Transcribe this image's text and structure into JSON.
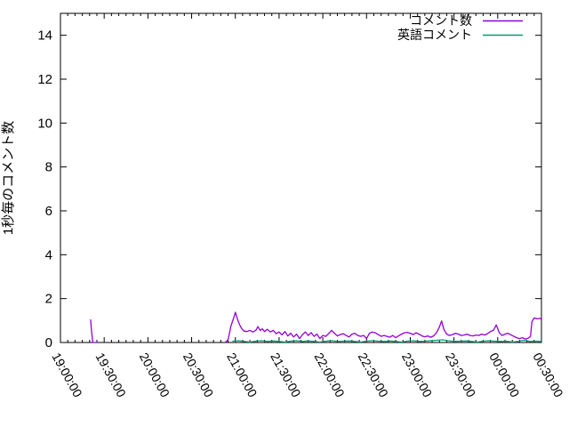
{
  "chart_data": {
    "type": "line",
    "title": "",
    "xlabel": "",
    "ylabel": "1秒毎のコメント数",
    "x_unit": "minutes since 19:00:00",
    "xlim": [
      0,
      330
    ],
    "ylim": [
      0,
      15
    ],
    "grid": false,
    "legend_position": "top-right-inside",
    "x_tick_labels": [
      "19:00:00",
      "19:30:00",
      "20:00:00",
      "20:30:00",
      "21:00:00",
      "21:30:00",
      "22:00:00",
      "22:30:00",
      "23:00:00",
      "23:30:00",
      "00:00:00",
      "00:30:00"
    ],
    "x_major_tick_interval_min": 30,
    "x_minor_tick_interval_min": 5,
    "y_ticks": [
      0,
      2,
      4,
      6,
      8,
      10,
      12,
      14
    ],
    "series": [
      {
        "name": "コメント数",
        "color": "#9400d3",
        "segments": [
          [
            [
              20.7,
              1.05
            ],
            [
              21.3,
              0.55
            ],
            [
              22.2,
              0
            ],
            [
              25.5,
              0
            ]
          ],
          [
            [
              113,
              0
            ],
            [
              115,
              0.12
            ],
            [
              117,
              0.75
            ],
            [
              119,
              1.15
            ],
            [
              120,
              1.38
            ],
            [
              121.5,
              1.05
            ],
            [
              123,
              0.8
            ],
            [
              124.5,
              0.62
            ],
            [
              126,
              0.52
            ],
            [
              128,
              0.5
            ],
            [
              130,
              0.55
            ],
            [
              132,
              0.48
            ],
            [
              134,
              0.55
            ],
            [
              135.5,
              0.72
            ],
            [
              137,
              0.55
            ],
            [
              138.5,
              0.62
            ],
            [
              140,
              0.5
            ],
            [
              142,
              0.6
            ],
            [
              144,
              0.48
            ],
            [
              146,
              0.55
            ],
            [
              148,
              0.4
            ],
            [
              150,
              0.48
            ],
            [
              152,
              0.35
            ],
            [
              154,
              0.5
            ],
            [
              156,
              0.3
            ],
            [
              158,
              0.42
            ],
            [
              160,
              0.25
            ],
            [
              162,
              0.38
            ],
            [
              164,
              0.18
            ],
            [
              166,
              0.35
            ],
            [
              168,
              0.48
            ],
            [
              170,
              0.32
            ],
            [
              172,
              0.45
            ],
            [
              174,
              0.28
            ],
            [
              176,
              0.38
            ],
            [
              178,
              0.18
            ],
            [
              180,
              0.32
            ],
            [
              182,
              0.28
            ],
            [
              184,
              0.4
            ],
            [
              186,
              0.55
            ],
            [
              188,
              0.42
            ],
            [
              190,
              0.3
            ],
            [
              192,
              0.36
            ],
            [
              194,
              0.4
            ],
            [
              196,
              0.32
            ],
            [
              198,
              0.25
            ],
            [
              200,
              0.38
            ],
            [
              202,
              0.42
            ],
            [
              204,
              0.32
            ],
            [
              206,
              0.28
            ],
            [
              208,
              0.32
            ],
            [
              210,
              0.18
            ],
            [
              212,
              0.42
            ],
            [
              214,
              0.48
            ],
            [
              216,
              0.44
            ],
            [
              218,
              0.36
            ],
            [
              220,
              0.28
            ],
            [
              222,
              0.32
            ],
            [
              224,
              0.28
            ],
            [
              226,
              0.24
            ],
            [
              228,
              0.32
            ],
            [
              230,
              0.22
            ],
            [
              232,
              0.3
            ],
            [
              234,
              0.38
            ],
            [
              236,
              0.44
            ],
            [
              238,
              0.46
            ],
            [
              240,
              0.42
            ],
            [
              242,
              0.36
            ],
            [
              244,
              0.44
            ],
            [
              246,
              0.38
            ],
            [
              248,
              0.3
            ],
            [
              250,
              0.26
            ],
            [
              252,
              0.3
            ],
            [
              254,
              0.24
            ],
            [
              256,
              0.3
            ],
            [
              258,
              0.45
            ],
            [
              260,
              0.7
            ],
            [
              261.5,
              0.98
            ],
            [
              263,
              0.6
            ],
            [
              265,
              0.38
            ],
            [
              267,
              0.32
            ],
            [
              269,
              0.36
            ],
            [
              271,
              0.42
            ],
            [
              273,
              0.38
            ],
            [
              275,
              0.32
            ],
            [
              277,
              0.34
            ],
            [
              279,
              0.38
            ],
            [
              281,
              0.32
            ],
            [
              283,
              0.3
            ],
            [
              285,
              0.34
            ],
            [
              287,
              0.32
            ],
            [
              289,
              0.38
            ],
            [
              291,
              0.34
            ],
            [
              293,
              0.4
            ],
            [
              295,
              0.5
            ],
            [
              297,
              0.55
            ],
            [
              299,
              0.8
            ],
            [
              301,
              0.45
            ],
            [
              303,
              0.32
            ],
            [
              305,
              0.38
            ],
            [
              307,
              0.42
            ],
            [
              309,
              0.35
            ],
            [
              311,
              0.28
            ],
            [
              313,
              0.22
            ],
            [
              315,
              0.18
            ],
            [
              317,
              0.22
            ],
            [
              319,
              0.16
            ],
            [
              321,
              0.2
            ],
            [
              322.5,
              0.28
            ],
            [
              323.5,
              0.95
            ],
            [
              325,
              1.12
            ],
            [
              327,
              1.08
            ],
            [
              329,
              1.1
            ],
            [
              330,
              1.05
            ]
          ]
        ]
      },
      {
        "name": "英語コメント",
        "color": "#009e73",
        "segments": [
          [
            [
              118,
              0.06
            ],
            [
              122,
              0.08
            ],
            [
              126,
              0.05
            ],
            [
              130,
              0.02
            ],
            [
              134,
              0.06
            ],
            [
              138,
              0.08
            ],
            [
              142,
              0.05
            ],
            [
              146,
              0.07
            ],
            [
              150,
              0.05
            ],
            [
              154,
              0.02
            ],
            [
              158,
              0.06
            ],
            [
              162,
              0.08
            ],
            [
              166,
              0.05
            ],
            [
              170,
              0.07
            ],
            [
              174,
              0.05
            ],
            [
              178,
              0.02
            ],
            [
              182,
              0.06
            ],
            [
              186,
              0.08
            ],
            [
              190,
              0.05
            ],
            [
              194,
              0.06
            ],
            [
              198,
              0.07
            ],
            [
              202,
              0.05
            ],
            [
              206,
              0.02
            ],
            [
              210,
              0.06
            ],
            [
              214,
              0.08
            ],
            [
              218,
              0.06
            ],
            [
              222,
              0.05
            ],
            [
              226,
              0.07
            ],
            [
              230,
              0.05
            ],
            [
              234,
              0.02
            ],
            [
              238,
              0.06
            ],
            [
              242,
              0.08
            ],
            [
              246,
              0.05
            ],
            [
              250,
              0.06
            ],
            [
              254,
              0.08
            ],
            [
              258,
              0.1
            ],
            [
              262,
              0.12
            ],
            [
              266,
              0.08
            ],
            [
              270,
              0.05
            ],
            [
              274,
              0.06
            ],
            [
              278,
              0.07
            ],
            [
              282,
              0.05
            ],
            [
              286,
              0.02
            ],
            [
              290,
              0.06
            ],
            [
              294,
              0.08
            ],
            [
              298,
              0.06
            ],
            [
              302,
              0.05
            ],
            [
              306,
              0.06
            ],
            [
              310,
              0.02
            ],
            [
              314,
              0.05
            ],
            [
              318,
              0.1
            ],
            [
              322,
              0.05
            ],
            [
              326,
              0.06
            ],
            [
              330,
              0.05
            ]
          ]
        ]
      }
    ]
  },
  "colors": {
    "background": "#ffffff",
    "axis": "#000000",
    "text": "#000000",
    "series1": "#9400d3",
    "series2": "#009e73"
  }
}
